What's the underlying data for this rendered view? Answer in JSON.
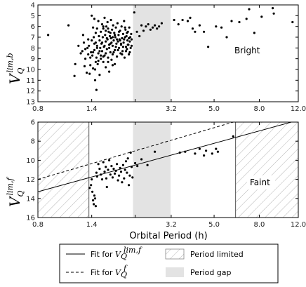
{
  "chart_data": [
    {
      "panel": "top",
      "type": "scatter",
      "annotation": "Bright",
      "ylabel": {
        "main": "V",
        "sub": "Q",
        "sup": "lim,b"
      },
      "xlabel": "",
      "xscale": "log",
      "xlim": [
        0.8,
        12.0
      ],
      "ylim": [
        13,
        4
      ],
      "x_ticks": [
        0.8,
        1.4,
        2.2,
        3.2,
        5.0,
        8.0,
        12.0
      ],
      "x_tick_labels": [
        "0.8",
        "1.4",
        "",
        "3.2",
        "5.0",
        "8.0",
        "12.0"
      ],
      "y_ticks": [
        4,
        5,
        6,
        7,
        8,
        9,
        10,
        11,
        12,
        13
      ],
      "y_tick_labels": [
        "4",
        "5",
        "6",
        "7",
        "8",
        "9",
        "10",
        "11",
        "12",
        "13"
      ],
      "shaded_regions": [
        {
          "name": "Period gap",
          "x": [
            2.15,
            3.18
          ],
          "color": "#e3e3e3"
        }
      ],
      "points": [
        [
          0.89,
          6.8
        ],
        [
          1.1,
          5.9
        ],
        [
          1.17,
          10.6
        ],
        [
          1.18,
          9.5
        ],
        [
          1.22,
          7.8
        ],
        [
          1.25,
          8.5
        ],
        [
          1.28,
          6.8
        ],
        [
          1.3,
          9.7
        ],
        [
          1.31,
          9.0
        ],
        [
          1.33,
          10.3
        ],
        [
          1.34,
          8.0
        ],
        [
          1.35,
          7.2
        ],
        [
          1.36,
          7.8
        ],
        [
          1.37,
          10.4
        ],
        [
          1.38,
          9.6
        ],
        [
          1.39,
          8.4
        ],
        [
          1.4,
          5.0
        ],
        [
          1.4,
          7.3
        ],
        [
          1.41,
          8.7
        ],
        [
          1.42,
          6.1
        ],
        [
          1.42,
          9.9
        ],
        [
          1.43,
          7.0
        ],
        [
          1.44,
          5.3
        ],
        [
          1.44,
          8.2
        ],
        [
          1.45,
          10.0
        ],
        [
          1.45,
          11.0
        ],
        [
          1.46,
          6.6
        ],
        [
          1.46,
          7.5
        ],
        [
          1.47,
          8.9
        ],
        [
          1.47,
          11.9
        ],
        [
          1.48,
          6.2
        ],
        [
          1.48,
          7.8
        ],
        [
          1.49,
          9.5
        ],
        [
          1.5,
          5.5
        ],
        [
          1.5,
          8.5
        ],
        [
          1.51,
          6.9
        ],
        [
          1.52,
          7.3
        ],
        [
          1.52,
          10.5
        ],
        [
          1.53,
          8.0
        ],
        [
          1.54,
          6.5
        ],
        [
          1.54,
          9.0
        ],
        [
          1.55,
          7.6
        ],
        [
          1.56,
          5.8
        ],
        [
          1.56,
          8.3
        ],
        [
          1.57,
          7.0
        ],
        [
          1.58,
          6.2
        ],
        [
          1.58,
          9.3
        ],
        [
          1.59,
          7.9
        ],
        [
          1.6,
          5.2
        ],
        [
          1.6,
          8.7
        ],
        [
          1.61,
          6.8
        ],
        [
          1.62,
          7.4
        ],
        [
          1.62,
          9.8
        ],
        [
          1.63,
          6.0
        ],
        [
          1.64,
          8.1
        ],
        [
          1.65,
          7.2
        ],
        [
          1.65,
          5.6
        ],
        [
          1.66,
          8.9
        ],
        [
          1.67,
          6.5
        ],
        [
          1.68,
          7.7
        ],
        [
          1.68,
          10.2
        ],
        [
          1.69,
          6.9
        ],
        [
          1.7,
          8.4
        ],
        [
          1.71,
          5.4
        ],
        [
          1.71,
          7.1
        ],
        [
          1.72,
          9.1
        ],
        [
          1.73,
          6.3
        ],
        [
          1.74,
          7.8
        ],
        [
          1.74,
          8.6
        ],
        [
          1.75,
          5.9
        ],
        [
          1.76,
          7.3
        ],
        [
          1.77,
          6.6
        ],
        [
          1.78,
          8.2
        ],
        [
          1.78,
          9.5
        ],
        [
          1.79,
          7.0
        ],
        [
          1.8,
          6.1
        ],
        [
          1.81,
          7.6
        ],
        [
          1.82,
          8.8
        ],
        [
          1.83,
          5.7
        ],
        [
          1.84,
          7.4
        ],
        [
          1.85,
          6.8
        ],
        [
          1.86,
          8.0
        ],
        [
          1.87,
          7.2
        ],
        [
          1.88,
          6.4
        ],
        [
          1.89,
          8.5
        ],
        [
          1.9,
          7.7
        ],
        [
          1.91,
          6.0
        ],
        [
          1.92,
          7.1
        ],
        [
          1.93,
          8.3
        ],
        [
          1.94,
          6.7
        ],
        [
          1.95,
          7.5
        ],
        [
          1.96,
          5.5
        ],
        [
          1.97,
          8.9
        ],
        [
          1.98,
          7.0
        ],
        [
          1.99,
          6.3
        ],
        [
          2.0,
          7.9
        ],
        [
          2.01,
          6.9
        ],
        [
          2.02,
          8.1
        ],
        [
          2.03,
          7.3
        ],
        [
          2.04,
          6.5
        ],
        [
          2.05,
          7.7
        ],
        [
          2.06,
          8.6
        ],
        [
          2.07,
          6.1
        ],
        [
          2.08,
          7.4
        ],
        [
          2.09,
          7.0
        ],
        [
          2.1,
          8.0
        ],
        [
          2.11,
          6.7
        ],
        [
          2.12,
          7.2
        ],
        [
          1.58,
          6.0
        ],
        [
          1.62,
          6.4
        ],
        [
          1.66,
          6.2
        ],
        [
          1.7,
          6.6
        ],
        [
          1.74,
          7.0
        ],
        [
          1.78,
          6.8
        ],
        [
          1.82,
          7.2
        ],
        [
          1.86,
          6.5
        ],
        [
          1.9,
          7.6
        ],
        [
          1.94,
          7.9
        ],
        [
          1.98,
          6.1
        ],
        [
          2.02,
          6.6
        ],
        [
          2.06,
          7.1
        ],
        [
          1.44,
          7.6
        ],
        [
          1.48,
          8.0
        ],
        [
          1.52,
          8.3
        ],
        [
          1.56,
          7.5
        ],
        [
          1.6,
          7.8
        ],
        [
          1.64,
          7.1
        ],
        [
          1.68,
          8.0
        ],
        [
          1.72,
          7.5
        ],
        [
          1.76,
          8.4
        ],
        [
          1.8,
          7.9
        ],
        [
          1.84,
          8.2
        ],
        [
          1.88,
          7.3
        ],
        [
          1.92,
          8.6
        ],
        [
          1.96,
          7.2
        ],
        [
          2.0,
          8.3
        ],
        [
          2.04,
          7.7
        ],
        [
          2.08,
          8.4
        ],
        [
          2.12,
          7.8
        ],
        [
          1.5,
          9.2
        ],
        [
          1.54,
          8.7
        ],
        [
          1.58,
          8.8
        ],
        [
          1.62,
          8.5
        ],
        [
          1.66,
          9.3
        ],
        [
          1.7,
          7.6
        ],
        [
          1.74,
          9.6
        ],
        [
          1.38,
          8.9
        ],
        [
          1.35,
          8.6
        ],
        [
          1.42,
          8.4
        ],
        [
          1.46,
          9.3
        ],
        [
          1.29,
          7.5
        ],
        [
          1.27,
          8.3
        ],
        [
          1.31,
          8.1
        ],
        [
          2.18,
          4.7
        ],
        [
          2.24,
          6.5
        ],
        [
          2.3,
          6.9
        ],
        [
          2.35,
          5.9
        ],
        [
          2.4,
          6.4
        ],
        [
          2.46,
          6.0
        ],
        [
          2.52,
          5.8
        ],
        [
          2.58,
          6.3
        ],
        [
          2.64,
          6.1
        ],
        [
          2.7,
          5.9
        ],
        [
          2.76,
          6.2
        ],
        [
          2.82,
          6.0
        ],
        [
          2.9,
          5.7
        ],
        [
          3.3,
          5.4
        ],
        [
          3.45,
          5.8
        ],
        [
          3.6,
          5.4
        ],
        [
          3.8,
          5.5
        ],
        [
          3.9,
          5.2
        ],
        [
          4.0,
          6.2
        ],
        [
          4.1,
          6.5
        ],
        [
          4.3,
          5.9
        ],
        [
          4.5,
          6.5
        ],
        [
          4.7,
          7.9
        ],
        [
          5.1,
          6.0
        ],
        [
          5.4,
          6.1
        ],
        [
          5.7,
          7.0
        ],
        [
          6.0,
          5.5
        ],
        [
          6.5,
          5.6
        ],
        [
          7.0,
          5.3
        ],
        [
          7.2,
          4.4
        ],
        [
          7.6,
          6.6
        ],
        [
          8.2,
          5.1
        ],
        [
          9.2,
          4.3
        ],
        [
          9.3,
          4.8
        ],
        [
          11.3,
          5.6
        ]
      ]
    },
    {
      "panel": "bottom",
      "type": "scatter",
      "annotation": "Faint",
      "ylabel": {
        "main": "V",
        "sub": "Q",
        "sup": "lim,f"
      },
      "xlabel": "Orbital Period (h)",
      "xscale": "log",
      "xlim": [
        0.8,
        12.0
      ],
      "ylim": [
        16,
        6
      ],
      "x_ticks": [
        0.8,
        1.4,
        2.2,
        3.2,
        5.0,
        8.0,
        12.0
      ],
      "x_tick_labels": [
        "0.8",
        "1.4",
        "",
        "3.2",
        "5.0",
        "8.0",
        "12.0"
      ],
      "y_ticks": [
        6,
        8,
        10,
        12,
        14,
        16
      ],
      "y_tick_labels": [
        "6",
        "8",
        "10",
        "12",
        "14",
        "16"
      ],
      "shaded_regions": [
        {
          "name": "Period gap",
          "x": [
            2.15,
            3.18
          ],
          "color": "#e3e3e3"
        }
      ],
      "hatched_regions": [
        {
          "name": "Period limited",
          "x": [
            0.8,
            1.36
          ]
        },
        {
          "name": "Period limited",
          "x": [
            6.25,
            12.0
          ]
        }
      ],
      "fit_lines": [
        {
          "name": "Fit for V_Q^lim,f",
          "style": "solid",
          "x": [
            0.8,
            12.0
          ],
          "y": [
            13.3,
            5.8
          ]
        },
        {
          "name": "Fit for V_Q^f",
          "style": "dashed",
          "x": [
            0.8,
            12.0
          ],
          "y": [
            12.0,
            4.0
          ]
        }
      ],
      "points": [
        [
          1.37,
          12.9
        ],
        [
          1.39,
          12.6
        ],
        [
          1.4,
          12.0
        ],
        [
          1.41,
          13.3
        ],
        [
          1.42,
          14.2
        ],
        [
          1.43,
          14.6
        ],
        [
          1.44,
          13.7
        ],
        [
          1.45,
          14.0
        ],
        [
          1.46,
          14.8
        ],
        [
          1.47,
          11.3
        ],
        [
          1.48,
          11.7
        ],
        [
          1.5,
          10.4
        ],
        [
          1.52,
          10.9
        ],
        [
          1.54,
          11.5
        ],
        [
          1.56,
          12.0
        ],
        [
          1.58,
          10.2
        ],
        [
          1.6,
          11.2
        ],
        [
          1.62,
          10.7
        ],
        [
          1.63,
          11.9
        ],
        [
          1.64,
          12.8
        ],
        [
          1.66,
          11.0
        ],
        [
          1.68,
          10.0
        ],
        [
          1.7,
          11.5
        ],
        [
          1.72,
          10.6
        ],
        [
          1.74,
          11.8
        ],
        [
          1.76,
          10.9
        ],
        [
          1.78,
          11.4
        ],
        [
          1.8,
          11.1
        ],
        [
          1.82,
          10.4
        ],
        [
          1.84,
          12.1
        ],
        [
          1.86,
          11.6
        ],
        [
          1.88,
          10.8
        ],
        [
          1.9,
          11.2
        ],
        [
          1.92,
          12.3
        ],
        [
          1.94,
          10.5
        ],
        [
          1.96,
          11.9
        ],
        [
          1.98,
          11.0
        ],
        [
          2.0,
          10.1
        ],
        [
          2.02,
          11.3
        ],
        [
          2.04,
          9.8
        ],
        [
          2.06,
          12.6
        ],
        [
          2.08,
          11.6
        ],
        [
          2.1,
          9.2
        ],
        [
          2.12,
          10.7
        ],
        [
          2.14,
          11.8
        ],
        [
          2.2,
          10.3
        ],
        [
          2.25,
          10.6
        ],
        [
          2.35,
          9.9
        ],
        [
          2.5,
          10.5
        ],
        [
          2.7,
          9.1
        ],
        [
          3.5,
          9.2
        ],
        [
          3.7,
          9.1
        ],
        [
          4.1,
          9.3
        ],
        [
          4.3,
          8.8
        ],
        [
          4.5,
          9.5
        ],
        [
          4.6,
          9.0
        ],
        [
          4.9,
          9.3
        ],
        [
          5.1,
          8.8
        ],
        [
          5.2,
          9.1
        ],
        [
          6.1,
          7.5
        ]
      ]
    }
  ],
  "legend": {
    "items": [
      {
        "kind": "solid",
        "label_main": "Fit for ",
        "math": {
          "main": "V",
          "sub": "Q",
          "sup": "lim,f"
        }
      },
      {
        "kind": "dashed",
        "label_main": "Fit for ",
        "math": {
          "main": "V",
          "sub": "Q",
          "sup": "f"
        }
      },
      {
        "kind": "hatched",
        "label_main": "Period limited"
      },
      {
        "kind": "shaded",
        "label_main": "Period gap"
      }
    ]
  }
}
